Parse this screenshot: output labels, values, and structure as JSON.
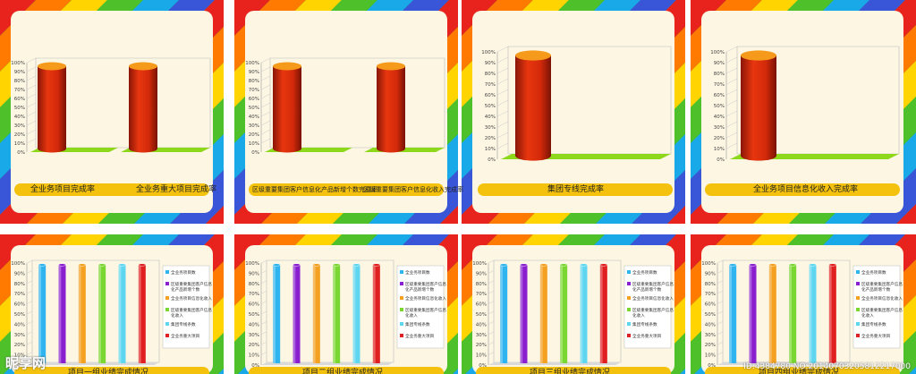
{
  "chart_data": [
    {
      "type": "bar",
      "style": "cylinder",
      "categories": [
        "全业务项目完成率",
        "全业务重大项目完成率"
      ],
      "values": [
        100,
        100
      ],
      "ylim": [
        0,
        100
      ],
      "tick_labels": [
        "0%",
        "10%",
        "20%",
        "30%",
        "40%",
        "50%",
        "60%",
        "70%",
        "80%",
        "90%",
        "100%"
      ],
      "caption": [
        "全业务项目完成率",
        "全业务重大项目完成率"
      ]
    },
    {
      "type": "bar",
      "style": "cylinder",
      "categories": [
        "区级重要集团客户信息化产品新增个数完成率",
        "区级重要集团客户信息化收入完成率"
      ],
      "values": [
        100,
        100
      ],
      "ylim": [
        0,
        100
      ],
      "tick_labels": [
        "0%",
        "10%",
        "20%",
        "30%",
        "40%",
        "50%",
        "60%",
        "70%",
        "80%",
        "90%",
        "100%"
      ],
      "caption": [
        "区级重要集团客户信息化产品新增个数完成率",
        "区级重要集团客户信息化收入完成率"
      ]
    },
    {
      "type": "bar",
      "style": "cylinder",
      "categories": [
        "集团专线完成率"
      ],
      "values": [
        100
      ],
      "ylim": [
        0,
        100
      ],
      "tick_labels": [
        "0%",
        "10%",
        "20%",
        "30%",
        "40%",
        "50%",
        "60%",
        "70%",
        "80%",
        "90%",
        "100%"
      ],
      "caption": [
        "集团专线完成率"
      ]
    },
    {
      "type": "bar",
      "style": "cylinder",
      "categories": [
        "全业务项目信息化收入完成率"
      ],
      "values": [
        100
      ],
      "ylim": [
        0,
        100
      ],
      "tick_labels": [
        "0%",
        "10%",
        "20%",
        "30%",
        "40%",
        "50%",
        "60%",
        "70%",
        "80%",
        "90%",
        "100%"
      ],
      "caption": [
        "全业务项目信息化收入完成率"
      ]
    },
    {
      "type": "bar",
      "style": "cylinder",
      "title": "项目一组业绩完成情况",
      "series": [
        {
          "name": "全业务项目数",
          "values": [
            100
          ]
        },
        {
          "name": "区级重要集团客户信息化产品新增个数",
          "values": [
            100
          ]
        },
        {
          "name": "全业务项目信息化收入",
          "values": [
            100
          ]
        },
        {
          "name": "区级重要集团客户信息化收入",
          "values": [
            100
          ]
        },
        {
          "name": "集团专线条数",
          "values": [
            100
          ]
        },
        {
          "name": "全业务重大项目",
          "values": [
            100
          ]
        }
      ],
      "ylim": [
        0,
        100
      ],
      "tick_labels": [
        "0%",
        "10%",
        "20%",
        "30%",
        "40%",
        "50%",
        "60%",
        "70%",
        "80%",
        "90%",
        "100%"
      ],
      "legend": "right"
    },
    {
      "type": "bar",
      "style": "cylinder",
      "title": "项目二组业绩完成情况",
      "series": [
        {
          "name": "全业务项目数",
          "values": [
            100
          ]
        },
        {
          "name": "区级重要集团客户信息化产品新增个数",
          "values": [
            100
          ]
        },
        {
          "name": "全业务项目信息化收入",
          "values": [
            100
          ]
        },
        {
          "name": "区级重要集团客户信息化收入",
          "values": [
            100
          ]
        },
        {
          "name": "集团专线条数",
          "values": [
            100
          ]
        },
        {
          "name": "全业务重大项目",
          "values": [
            100
          ]
        }
      ],
      "ylim": [
        0,
        100
      ],
      "tick_labels": [
        "0%",
        "10%",
        "20%",
        "30%",
        "40%",
        "50%",
        "60%",
        "70%",
        "80%",
        "90%",
        "100%"
      ],
      "legend": "right"
    },
    {
      "type": "bar",
      "style": "cylinder",
      "title": "项目三组业绩完成情况",
      "series": [
        {
          "name": "全业务项目数",
          "values": [
            100
          ]
        },
        {
          "name": "区级重要集团客户信息化产品新增个数",
          "values": [
            100
          ]
        },
        {
          "name": "全业务项目信息化收入",
          "values": [
            100
          ]
        },
        {
          "name": "区级重要集团客户信息化收入",
          "values": [
            100
          ]
        },
        {
          "name": "集团专线条数",
          "values": [
            100
          ]
        },
        {
          "name": "全业务重大项目",
          "values": [
            100
          ]
        }
      ],
      "ylim": [
        0,
        100
      ],
      "tick_labels": [
        "0%",
        "10%",
        "20%",
        "30%",
        "40%",
        "50%",
        "60%",
        "70%",
        "80%",
        "90%",
        "100%"
      ],
      "legend": "right"
    },
    {
      "type": "bar",
      "style": "cylinder",
      "title": "项目四组业绩完成情况",
      "series": [
        {
          "name": "全业务项目数",
          "values": [
            100
          ]
        },
        {
          "name": "区级重要集团客户信息化产品新增个数",
          "values": [
            100
          ]
        },
        {
          "name": "全业务项目信息化收入",
          "values": [
            100
          ]
        },
        {
          "name": "区级重要集团客户信息化收入",
          "values": [
            100
          ]
        },
        {
          "name": "集团专线条数",
          "values": [
            100
          ]
        },
        {
          "name": "全业务重大项目",
          "values": [
            100
          ]
        }
      ],
      "ylim": [
        0,
        100
      ],
      "tick_labels": [
        "0%",
        "10%",
        "20%",
        "30%",
        "40%",
        "50%",
        "60%",
        "70%",
        "80%",
        "90%",
        "100%"
      ],
      "legend": "right"
    }
  ],
  "colors": {
    "bar_red": "#d92a0c",
    "bar_top": "#f59a1a",
    "floor_green": "#8ed81c",
    "pill": "#f4c20d",
    "background": "#fcf6e3",
    "series": [
      "#2fb4f0",
      "#8a1fd0",
      "#f4a020",
      "#7ad630",
      "#5fd6f0",
      "#e02020"
    ]
  },
  "watermark": {
    "logo": "昵享网",
    "url": "ID:4384780 NO:20140703205812217000"
  }
}
